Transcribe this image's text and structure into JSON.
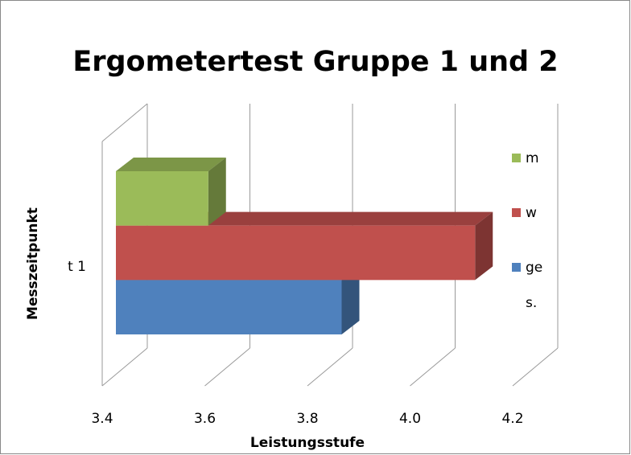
{
  "chart_data": {
    "type": "bar3d_horizontal",
    "title": "Ergometertest Gruppe 1 und 2",
    "x_label": "Leistungsstufe",
    "y_label": "Messzeitpunkt",
    "categories": [
      "t 1"
    ],
    "series": [
      {
        "name": "ges.",
        "color": "#4f81bd",
        "values": [
          3.84
        ]
      },
      {
        "name": "w",
        "color": "#c0504d",
        "values": [
          4.1
        ]
      },
      {
        "name": "m",
        "color": "#9bbb59",
        "values": [
          3.58
        ]
      }
    ],
    "xlim": [
      3.4,
      4.2
    ],
    "xticks": [
      {
        "value": 3.4,
        "label": "3.4"
      },
      {
        "value": 3.6,
        "label": "3.6"
      },
      {
        "value": 3.8,
        "label": "3.8"
      },
      {
        "value": 4.0,
        "label": "4.0"
      },
      {
        "value": 4.2,
        "label": "4.2"
      }
    ],
    "grid": true,
    "legend": "right"
  }
}
